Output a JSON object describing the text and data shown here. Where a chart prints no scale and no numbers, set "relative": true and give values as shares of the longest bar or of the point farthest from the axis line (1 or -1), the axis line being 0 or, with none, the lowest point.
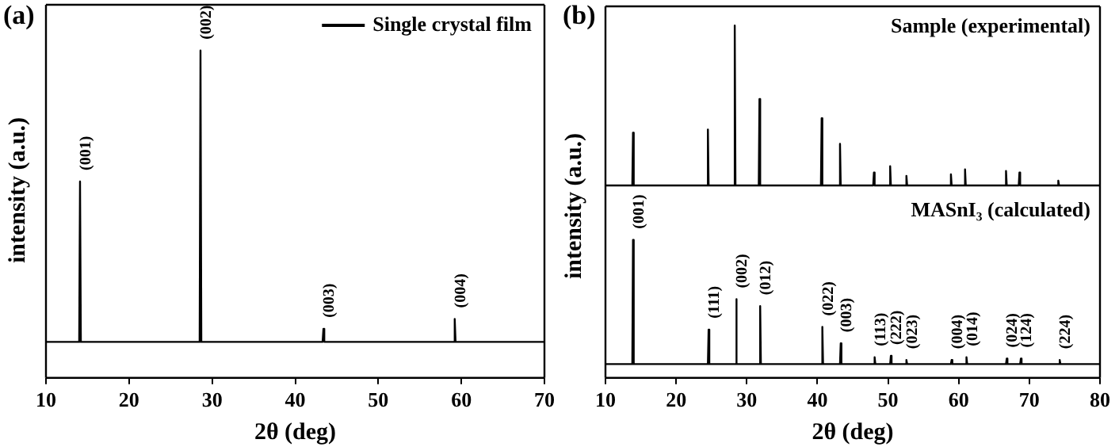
{
  "chart_data": [
    {
      "type": "line",
      "title": "(a)",
      "xlabel": "2θ (deg)",
      "ylabel": "intensity (a.u.)",
      "relative": true,
      "legend": "top right",
      "marker": "none",
      "xlim": [
        10,
        70
      ],
      "xticks": [
        10,
        20,
        30,
        40,
        50,
        60,
        70
      ],
      "x": [
        10,
        14.0,
        14.1,
        14.2,
        28.5,
        28.6,
        28.7,
        43.3,
        43.4,
        43.5,
        59.1,
        59.2,
        59.3,
        70
      ],
      "series": [
        {
          "name": "Single crystal film",
          "color": "#000000",
          "values": [
            0.11,
            0.11,
            0.6,
            0.11,
            0.11,
            1,
            0.11,
            0.11,
            0.15,
            0.11,
            0.11,
            0.18,
            0.11,
            0.11
          ]
        }
      ],
      "annotations": [
        {
          "text": "(001)",
          "x": 14.1,
          "y": 0.6
        },
        {
          "text": "(002)",
          "x": 28.6,
          "y": 1
        },
        {
          "text": "(003)",
          "x": 43.4,
          "y": 0.15
        },
        {
          "text": "(004)",
          "x": 59.2,
          "y": 0.18
        }
      ]
    },
    {
      "type": "line",
      "title": "(b)",
      "relative": true,
      "tick_labels": false,
      "marker": "none",
      "xlim": [
        10,
        80
      ],
      "x": [
        10,
        13.8,
        13.9,
        14.0,
        24.4,
        24.5,
        24.6,
        28.2,
        28.3,
        28.4,
        31.7,
        31.8,
        31.9,
        40.5,
        40.6,
        40.7,
        43.1,
        43.2,
        43.3,
        47.9,
        48.0,
        48.1,
        50.2,
        50.3,
        50.4,
        52.5,
        52.6,
        52.7,
        58.8,
        58.9,
        59.0,
        60.8,
        60.9,
        61.0,
        66.6,
        66.7,
        66.8,
        68.5,
        68.6,
        68.7,
        74.0,
        74.1,
        74.2,
        80
      ],
      "series": [
        {
          "name": "Sample (experimental)",
          "color": "#000000",
          "values": [
            0,
            0,
            0.33,
            0,
            0,
            0.35,
            0,
            0,
            1,
            0,
            0,
            0.54,
            0,
            0,
            0.42,
            0,
            0,
            0.26,
            0,
            0,
            0.08,
            0,
            0,
            0.12,
            0,
            0,
            0.06,
            0,
            0,
            0.07,
            0,
            0,
            0.1,
            0,
            0,
            0.09,
            0,
            0,
            0.08,
            0,
            0,
            0.03,
            0,
            0
          ]
        }
      ]
    },
    {
      "type": "line",
      "xlabel": "2θ (deg)",
      "ylabel": "intensity (a.u.)",
      "relative": true,
      "marker": "none",
      "xlim": [
        10,
        80
      ],
      "xticks": [
        10,
        20,
        30,
        40,
        50,
        60,
        70,
        80
      ],
      "x": [
        10,
        13.8,
        13.9,
        14.0,
        24.5,
        24.6,
        24.7,
        28.4,
        28.5,
        28.6,
        31.8,
        31.9,
        32.0,
        40.6,
        40.7,
        40.8,
        43.2,
        43.3,
        43.4,
        48.0,
        48.1,
        48.2,
        50.3,
        50.4,
        50.5,
        52.5,
        52.6,
        52.7,
        58.9,
        59.0,
        59.1,
        61.0,
        61.1,
        61.2,
        66.7,
        66.8,
        66.9,
        68.7,
        68.8,
        68.9,
        74.2,
        74.3,
        74.4,
        80
      ],
      "series": [
        {
          "name": "MASnI₃ (calculated)",
          "color": "#000000",
          "values": [
            0.1,
            0.1,
            1,
            0.1,
            0.1,
            0.35,
            0.1,
            0.1,
            0.57,
            0.1,
            0.1,
            0.52,
            0.1,
            0.1,
            0.37,
            0.1,
            0.1,
            0.25,
            0.1,
            0.1,
            0.15,
            0.1,
            0.1,
            0.16,
            0.1,
            0.1,
            0.13,
            0.1,
            0.1,
            0.13,
            0.1,
            0.1,
            0.15,
            0.1,
            0.1,
            0.14,
            0.1,
            0.1,
            0.14,
            0.1,
            0.1,
            0.13,
            0.1,
            0.1
          ]
        }
      ],
      "annotations": [
        {
          "text": "(001)",
          "x": 13.9,
          "y": 1
        },
        {
          "text": "(111)",
          "x": 24.6,
          "y": 0.35
        },
        {
          "text": "(002)",
          "x": 28.5,
          "y": 0.57
        },
        {
          "text": "(012)",
          "x": 31.9,
          "y": 0.52
        },
        {
          "text": "(022)",
          "x": 40.7,
          "y": 0.37
        },
        {
          "text": "(003)",
          "x": 43.3,
          "y": 0.25
        },
        {
          "text": "(113)",
          "x": 48.1,
          "y": 0.15
        },
        {
          "text": "(222)",
          "x": 50.4,
          "y": 0.16
        },
        {
          "text": "(023)",
          "x": 52.6,
          "y": 0.13
        },
        {
          "text": "(004)",
          "x": 59.0,
          "y": 0.13
        },
        {
          "text": "(014)",
          "x": 61.1,
          "y": 0.15
        },
        {
          "text": "(024)",
          "x": 66.8,
          "y": 0.14
        },
        {
          "text": "(124)",
          "x": 68.8,
          "y": 0.14
        },
        {
          "text": "(224)",
          "x": 74.3,
          "y": 0.13
        }
      ]
    }
  ]
}
